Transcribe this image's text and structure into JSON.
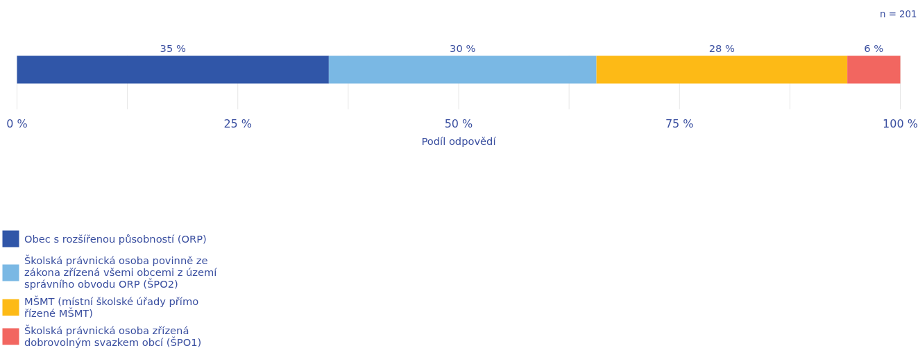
{
  "chart_data": {
    "type": "bar",
    "orientation": "horizontal",
    "stacked": true,
    "categories": [
      null
    ],
    "series": [
      {
        "name": "Obec s rozšířenou působností (ORP)",
        "color": "#3056a8",
        "values": [
          35.3
        ],
        "value_labels": [
          "35 %"
        ]
      },
      {
        "name": "Školská právnická osoba povinně ze zákona zřízená všemi obcemi z území správního obvodu ORP (ŠPO2)",
        "color": "#7ab8e4",
        "values": [
          30.3
        ],
        "value_labels": [
          "30 %"
        ]
      },
      {
        "name": "MŠMT (místní školské úřady přímo řízené MŠMT)",
        "color": "#fdba16",
        "values": [
          28.4
        ],
        "value_labels": [
          "28 %"
        ]
      },
      {
        "name": "Školská právnická osoba zřízená dobrovolným svazkem obcí (ŠPO1)",
        "color": "#f26660",
        "values": [
          6.0
        ],
        "value_labels": [
          "6 %"
        ]
      }
    ],
    "xlim": [
      0,
      100
    ],
    "xticks": [
      {
        "value": 0,
        "label": "0 %"
      },
      {
        "value": 12.5,
        "label": null
      },
      {
        "value": 25,
        "label": "25 %"
      },
      {
        "value": 37.5,
        "label": null
      },
      {
        "value": 50,
        "label": "50 %"
      },
      {
        "value": 62.5,
        "label": null
      },
      {
        "value": 75,
        "label": "75 %"
      },
      {
        "value": 87.5,
        "label": null
      },
      {
        "value": 100,
        "label": "100 %"
      }
    ],
    "xlabel": "Podíl odpovědí",
    "grid": "x",
    "legend": "bottom left",
    "annotations": [
      "n = 201"
    ]
  }
}
